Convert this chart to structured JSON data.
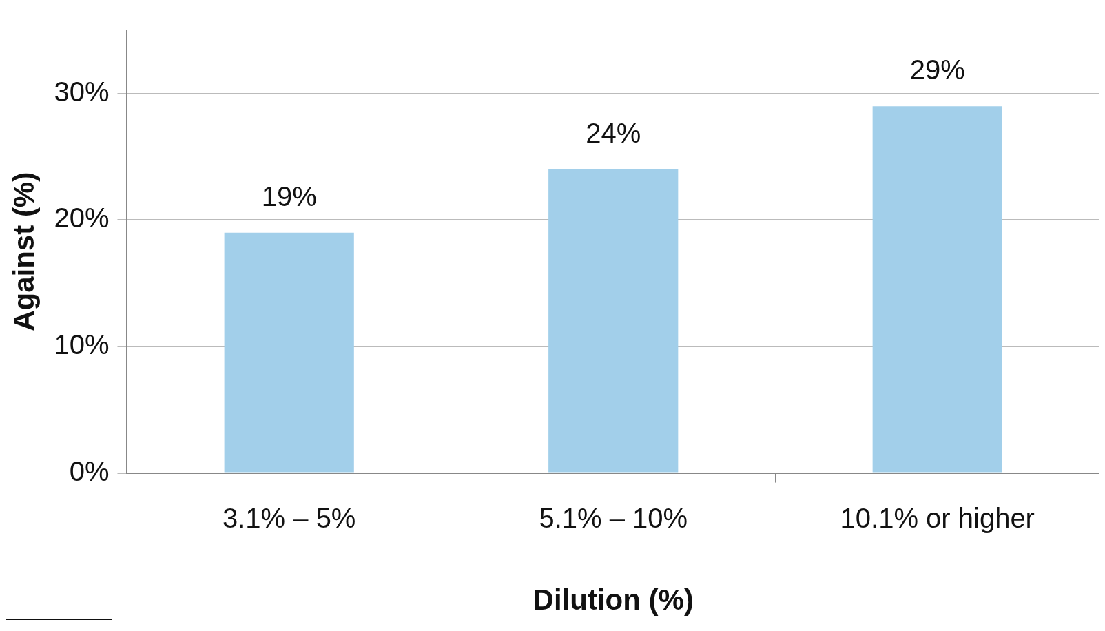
{
  "chart_data": {
    "type": "bar",
    "xlabel": "Dilution (%)",
    "ylabel": "Against (%)",
    "categories": [
      "3.1% – 5%",
      "5.1% – 10%",
      "10.1% or higher"
    ],
    "values": [
      19,
      24,
      29
    ],
    "value_labels": [
      "19%",
      "24%",
      "29%"
    ],
    "color": "#a2cfea",
    "ylim": [
      0,
      35
    ],
    "yticks": [
      {
        "value": 0,
        "label": "0%"
      },
      {
        "value": 10,
        "label": "10%"
      },
      {
        "value": 20,
        "label": "20%"
      },
      {
        "value": 30,
        "label": "30%"
      }
    ],
    "grid": "y",
    "legend": false
  }
}
